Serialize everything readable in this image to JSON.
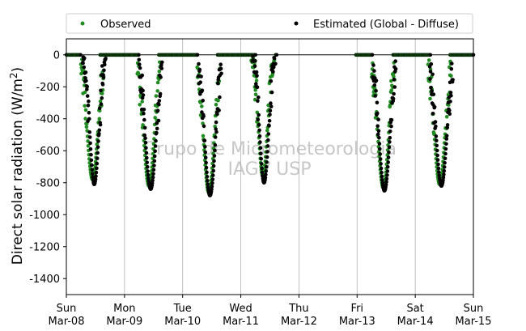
{
  "chart_data": {
    "type": "scatter",
    "ylabel": "Direct solar radiation (W/m²)",
    "ylabel_main": "Direct solar radiation (W/m",
    "ylabel_sup": "2",
    "ylabel_close": ")",
    "xlim": [
      0,
      7
    ],
    "ylim": [
      -1500,
      100
    ],
    "yticks": [
      0,
      -200,
      -400,
      -600,
      -800,
      -1000,
      -1200,
      -1400
    ],
    "xticks": [
      {
        "day": 0,
        "dow": "Sun",
        "date": "Mar-08"
      },
      {
        "day": 1,
        "dow": "Mon",
        "date": "Mar-09"
      },
      {
        "day": 2,
        "dow": "Tue",
        "date": "Mar-10"
      },
      {
        "day": 3,
        "dow": "Wed",
        "date": "Mar-11"
      },
      {
        "day": 4,
        "dow": "Thu",
        "date": "Mar-12"
      },
      {
        "day": 5,
        "dow": "Fri",
        "date": "Mar-13"
      },
      {
        "day": 6,
        "dow": "Sat",
        "date": "Mar-14"
      },
      {
        "day": 7,
        "dow": "Sun",
        "date": "Mar-15"
      }
    ],
    "vertical_grid": true,
    "zero_line": true,
    "legend_position": "top",
    "watermark": [
      "Grupo de Micrometeorologia",
      "IAG / USP"
    ],
    "night_segments": [
      [
        0.0,
        0.25
      ],
      [
        0.58,
        1.25
      ],
      [
        1.59,
        2.26
      ],
      [
        2.6,
        3.26
      ],
      [
        3.6,
        3.62
      ],
      [
        4.98,
        5.26
      ],
      [
        5.62,
        6.26
      ],
      [
        6.6,
        7.0
      ]
    ],
    "series": [
      {
        "name": "Observed",
        "color": "#228b22",
        "days": [
          {
            "center": 0.45,
            "min": -780,
            "width": 0.12
          },
          {
            "center": 1.42,
            "min": -820,
            "width": 0.12
          },
          {
            "center": 2.45,
            "min": -860,
            "width": 0.12
          },
          {
            "center": 3.38,
            "min": -760,
            "width": 0.1
          },
          {
            "center": 5.45,
            "min": -830,
            "width": 0.12
          },
          {
            "center": 6.42,
            "min": -810,
            "width": 0.12
          }
        ]
      },
      {
        "name": "Estimated (Global - Diffuse)",
        "color": "#000000",
        "days": [
          {
            "center": 0.48,
            "min": -810,
            "width": 0.1
          },
          {
            "center": 1.45,
            "min": -840,
            "width": 0.12
          },
          {
            "center": 2.47,
            "min": -880,
            "width": 0.12
          },
          {
            "center": 3.4,
            "min": -800,
            "width": 0.1
          },
          {
            "center": 5.47,
            "min": -850,
            "width": 0.12
          },
          {
            "center": 6.45,
            "min": -820,
            "width": 0.12
          }
        ]
      }
    ]
  }
}
